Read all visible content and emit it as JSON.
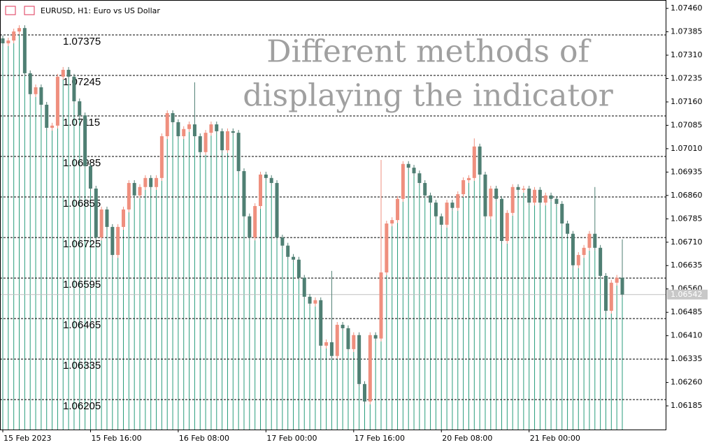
{
  "chart_data": {
    "type": "candlestick",
    "title": "EURUSD, H1:  Euro vs US Dollar",
    "annotation": [
      "Different methods of",
      "displaying the indicator"
    ],
    "x_labels": [
      "15 Feb 2023",
      "15 Feb 16:00",
      "16 Feb 08:00",
      "17 Feb 00:00",
      "17 Feb 16:00",
      "20 Feb 08:00",
      "21 Feb 00:00"
    ],
    "open": [
      1.07364,
      1.07348,
      1.07357,
      1.07386,
      1.07397,
      1.07252,
      1.07185,
      1.07207,
      1.07151,
      1.07077,
      1.07084,
      1.07241,
      1.07263,
      1.07241,
      1.07162,
      1.07117,
      1.06954,
      1.06882,
      1.06725,
      1.06815,
      1.06759,
      1.06669,
      1.06759,
      1.06815,
      1.069,
      1.0686,
      1.06887,
      1.06916,
      1.06887,
      1.06916,
      1.0705,
      1.07124,
      1.07095,
      1.0705,
      1.07073,
      1.07088,
      1.0705,
      1.06999,
      1.07061,
      1.07088,
      1.07066,
      1.07005,
      1.07066,
      1.07061,
      1.06938,
      1.06793,
      1.06725,
      1.06826,
      1.06927,
      1.06916,
      1.069,
      1.06725,
      1.06699,
      1.06663,
      1.06654,
      1.06596,
      1.06535,
      1.06513,
      1.06524,
      1.06378,
      1.06389,
      1.06345,
      1.06445,
      1.06434,
      1.06367,
      1.06412,
      1.06255,
      1.06199,
      1.06412,
      1.06401,
      1.06613,
      1.0677,
      1.06781,
      1.06849,
      1.06961,
      1.06949,
      1.06931,
      1.069,
      1.0686,
      1.06837,
      1.06793,
      1.06766,
      1.06837,
      1.0682,
      1.06864,
      1.06909,
      1.06916,
      1.07017,
      1.06927,
      1.06793,
      1.06882,
      1.06849,
      1.06714,
      1.06804,
      1.06887,
      1.06878,
      1.06882,
      1.06837,
      1.06878,
      1.06837,
      1.0686,
      1.06849,
      1.06833,
      1.0677,
      1.06737,
      1.06636,
      1.06669,
      1.06692,
      1.06737,
      1.06692,
      1.06602,
      1.0649,
      1.0658,
      1.06596
    ],
    "high": [
      1.07373,
      1.07366,
      1.07395,
      1.07406,
      1.07406,
      1.07261,
      1.07216,
      1.07216,
      1.0716,
      1.07093,
      1.0725,
      1.07272,
      1.07272,
      1.0725,
      1.07171,
      1.07126,
      1.06963,
      1.06891,
      1.06824,
      1.06824,
      1.06768,
      1.06768,
      1.06824,
      1.06909,
      1.06909,
      1.06896,
      1.06925,
      1.06925,
      1.06925,
      1.07059,
      1.07133,
      1.07133,
      1.07104,
      1.07082,
      1.07097,
      1.07223,
      1.07059,
      1.0707,
      1.07097,
      1.07097,
      1.07075,
      1.07075,
      1.07075,
      1.0707,
      1.06947,
      1.06802,
      1.06835,
      1.06936,
      1.06936,
      1.06925,
      1.06909,
      1.06734,
      1.06708,
      1.06672,
      1.06663,
      1.06605,
      1.06544,
      1.06533,
      1.06533,
      1.06398,
      1.06618,
      1.06454,
      1.06454,
      1.06443,
      1.06421,
      1.06421,
      1.06264,
      1.06421,
      1.06421,
      1.06974,
      1.06779,
      1.0679,
      1.06858,
      1.0697,
      1.0697,
      1.06958,
      1.0694,
      1.06909,
      1.06869,
      1.06846,
      1.06802,
      1.06846,
      1.06846,
      1.06873,
      1.06918,
      1.06925,
      1.07043,
      1.07026,
      1.06936,
      1.06891,
      1.06891,
      1.06858,
      1.06813,
      1.06896,
      1.06896,
      1.06891,
      1.06891,
      1.06887,
      1.06887,
      1.06869,
      1.06869,
      1.06858,
      1.06842,
      1.06779,
      1.06746,
      1.06678,
      1.06701,
      1.06746,
      1.06887,
      1.06701,
      1.06611,
      1.06589,
      1.06605,
      1.06719
    ],
    "low": [
      1.07339,
      1.07339,
      1.07348,
      1.07377,
      1.07243,
      1.07176,
      1.07176,
      1.07142,
      1.07068,
      1.07068,
      1.07075,
      1.07232,
      1.07232,
      1.07153,
      1.07108,
      1.06945,
      1.06873,
      1.06716,
      1.06716,
      1.0675,
      1.0666,
      1.0666,
      1.0675,
      1.06806,
      1.06851,
      1.06851,
      1.06878,
      1.06878,
      1.06878,
      1.06907,
      1.07041,
      1.07086,
      1.07041,
      1.07041,
      1.07064,
      1.07041,
      1.0699,
      1.0699,
      1.07052,
      1.07057,
      1.06996,
      1.06996,
      1.07052,
      1.06929,
      1.06784,
      1.06716,
      1.06716,
      1.06817,
      1.06907,
      1.06891,
      1.06716,
      1.0669,
      1.06654,
      1.06645,
      1.06587,
      1.06526,
      1.06504,
      1.06504,
      1.06369,
      1.06369,
      1.06336,
      1.06336,
      1.06425,
      1.06358,
      1.06358,
      1.06246,
      1.0619,
      1.0619,
      1.06392,
      1.06392,
      1.06604,
      1.06761,
      1.06772,
      1.0684,
      1.0694,
      1.06922,
      1.06891,
      1.06851,
      1.06828,
      1.06784,
      1.06757,
      1.06757,
      1.06811,
      1.06811,
      1.06855,
      1.069,
      1.06907,
      1.06918,
      1.06784,
      1.06784,
      1.0684,
      1.06705,
      1.06705,
      1.06795,
      1.06869,
      1.06869,
      1.06828,
      1.06828,
      1.06828,
      1.06828,
      1.0684,
      1.06824,
      1.06761,
      1.06728,
      1.06627,
      1.06627,
      1.0666,
      1.06683,
      1.06683,
      1.06593,
      1.06481,
      1.06481,
      1.06571,
      1.06533
    ],
    "close": [
      1.07348,
      1.07357,
      1.07386,
      1.07397,
      1.07252,
      1.07185,
      1.07207,
      1.07151,
      1.07077,
      1.07084,
      1.07241,
      1.07263,
      1.07241,
      1.07162,
      1.07117,
      1.06954,
      1.06882,
      1.06725,
      1.06815,
      1.06759,
      1.06669,
      1.06759,
      1.06815,
      1.069,
      1.0686,
      1.06887,
      1.06916,
      1.06887,
      1.06916,
      1.0705,
      1.07124,
      1.07095,
      1.0705,
      1.07073,
      1.07088,
      1.0705,
      1.06999,
      1.07061,
      1.07088,
      1.07066,
      1.07005,
      1.07066,
      1.07061,
      1.06938,
      1.06793,
      1.06725,
      1.06826,
      1.06927,
      1.06916,
      1.069,
      1.06725,
      1.06699,
      1.06663,
      1.06654,
      1.06596,
      1.06535,
      1.06513,
      1.06524,
      1.06378,
      1.06389,
      1.06345,
      1.06445,
      1.06434,
      1.06367,
      1.06412,
      1.06255,
      1.06199,
      1.06412,
      1.06401,
      1.06613,
      1.0677,
      1.06781,
      1.06849,
      1.06961,
      1.06949,
      1.06931,
      1.069,
      1.0686,
      1.06837,
      1.06793,
      1.06766,
      1.06837,
      1.0682,
      1.06864,
      1.06909,
      1.06916,
      1.07017,
      1.06927,
      1.06793,
      1.06882,
      1.06849,
      1.06714,
      1.06804,
      1.06887,
      1.06878,
      1.06882,
      1.06837,
      1.06878,
      1.06837,
      1.0686,
      1.06849,
      1.06833,
      1.0677,
      1.06737,
      1.06636,
      1.06669,
      1.06692,
      1.06737,
      1.06692,
      1.06602,
      1.0649,
      1.0658,
      1.06596,
      1.06542
    ],
    "up_color": "#ef8f7e",
    "down_color": "#4f7f73",
    "stem_color": "#2a9d7c",
    "levels": [
      1.07375,
      1.07245,
      1.07115,
      1.06985,
      1.06855,
      1.06725,
      1.06595,
      1.06465,
      1.06335,
      1.06205
    ],
    "current_price": 1.06542,
    "ylim": [
      1.06109,
      1.07487
    ],
    "yticks": [
      {
        "value": 1.0746,
        "label": "1.07460"
      },
      1.07385,
      {
        "value": 1.0731,
        "label": "1.07310"
      },
      1.07235,
      {
        "value": 1.0716,
        "label": "1.07160"
      },
      1.07085,
      {
        "value": 1.0701,
        "label": "1.07010"
      },
      1.06935,
      {
        "value": 1.0686,
        "label": "1.06860"
      },
      1.06785,
      {
        "value": 1.0671,
        "label": "1.06710"
      },
      1.06635,
      {
        "value": 1.0656,
        "label": "1.06560"
      },
      1.06485,
      {
        "value": 1.0641,
        "label": "1.06410"
      },
      1.06335,
      {
        "value": 1.0626,
        "label": "1.06260"
      },
      1.06185
    ]
  }
}
